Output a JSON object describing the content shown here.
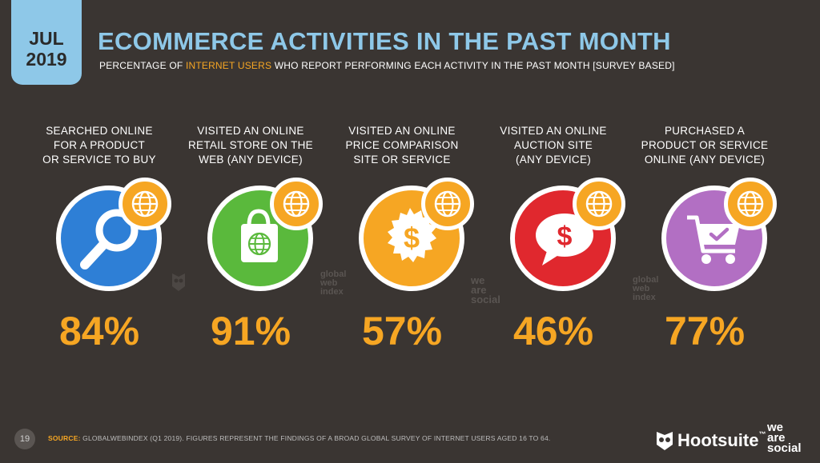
{
  "badge": {
    "month": "JUL",
    "year": "2019"
  },
  "title": "ECOMMERCE ACTIVITIES IN THE PAST MONTH",
  "subtitle": {
    "before": "PERCENTAGE OF ",
    "highlight": "INTERNET USERS",
    "after": " WHO REPORT PERFORMING EACH ACTIVITY IN THE PAST MONTH [SURVEY BASED]"
  },
  "items": [
    {
      "label_lines": [
        "SEARCHED ONLINE",
        "FOR A PRODUCT",
        "OR SERVICE TO BUY"
      ],
      "value": "84%",
      "icon": "magnifier-icon",
      "color": "#2e7fd6"
    },
    {
      "label_lines": [
        "VISITED AN ONLINE",
        "RETAIL STORE ON THE",
        "WEB (ANY DEVICE)"
      ],
      "value": "91%",
      "icon": "shopping-bag-icon",
      "color": "#5ab93c"
    },
    {
      "label_lines": [
        "VISITED AN ONLINE",
        "PRICE COMPARISON",
        "SITE OR SERVICE"
      ],
      "value": "57%",
      "icon": "dollar-badge-icon",
      "color": "#f6a623"
    },
    {
      "label_lines": [
        "VISITED AN ONLINE",
        "AUCTION SITE",
        "(ANY DEVICE)"
      ],
      "value": "46%",
      "icon": "dollar-speech-bubble-icon",
      "color": "#e0282e"
    },
    {
      "label_lines": [
        "PURCHASED A",
        "PRODUCT OR SERVICE",
        "ONLINE (ANY DEVICE)"
      ],
      "value": "77%",
      "icon": "shopping-cart-icon",
      "color": "#b26fc3"
    }
  ],
  "watermarks": {
    "gwi": [
      "global",
      "web",
      "index"
    ],
    "was": [
      "we",
      "are",
      "social"
    ]
  },
  "footer": {
    "page_number": "19",
    "source_label": "SOURCE:",
    "source_text": " GLOBALWEBINDEX (Q1 2019). FIGURES REPRESENT THE FINDINGS OF A BROAD GLOBAL SURVEY OF INTERNET USERS AGED 16 TO 64.",
    "hootsuite": "Hootsuite",
    "tm": "™",
    "was_lines": [
      "we",
      "are",
      "social"
    ]
  }
}
